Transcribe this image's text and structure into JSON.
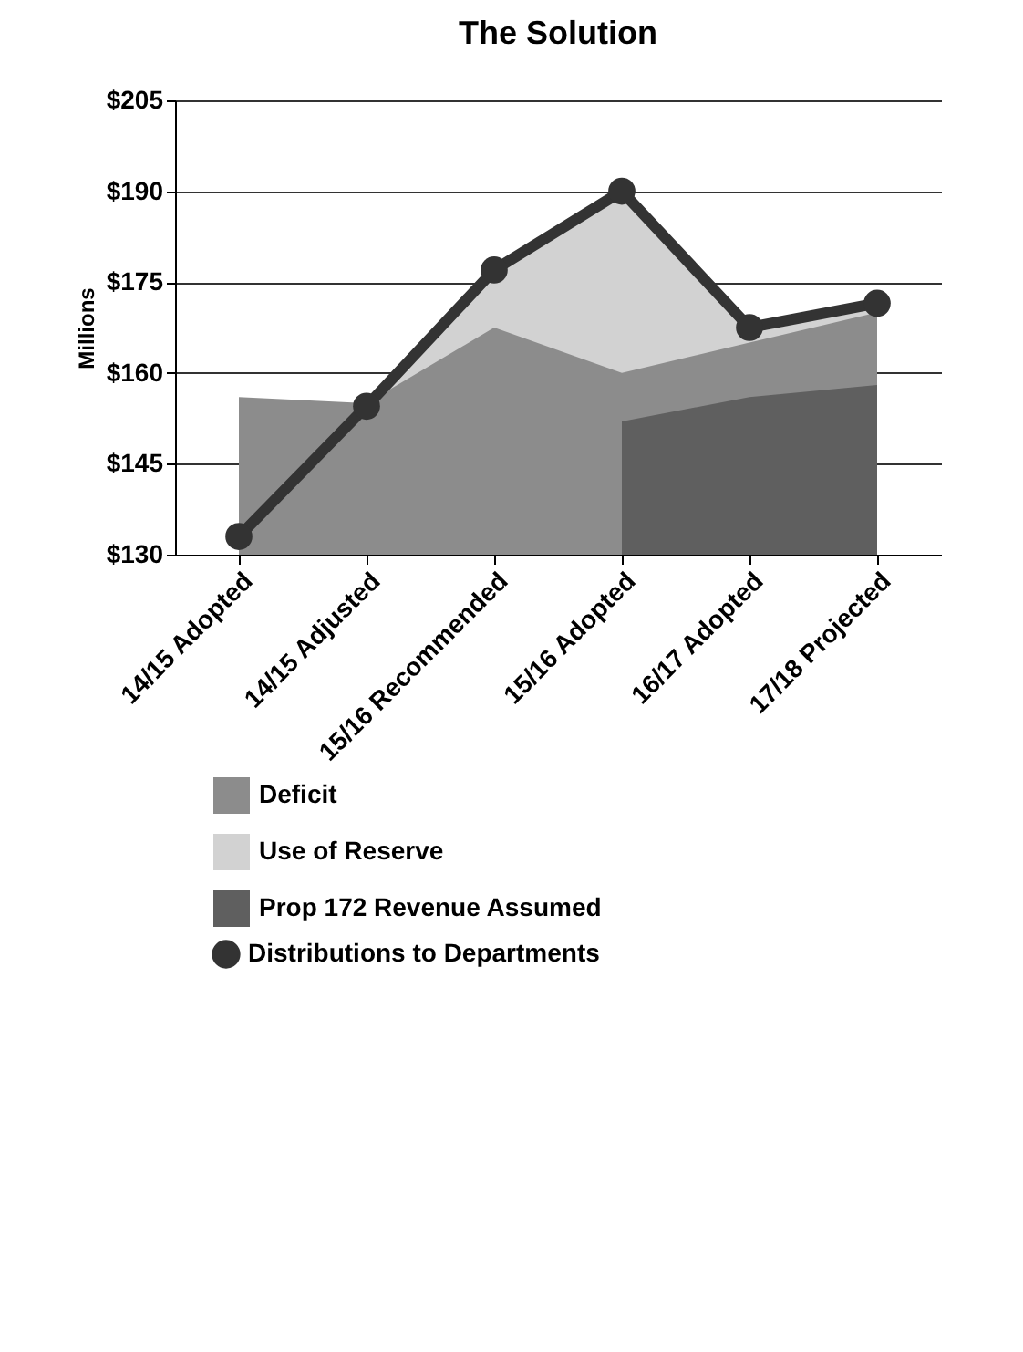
{
  "chart_data": {
    "type": "area",
    "title": "The Solution",
    "ylabel": "Millions",
    "categories": [
      "14/15 Adopted",
      "14/15 Adjusted",
      "15/16 Recommended",
      "15/16 Adopted",
      "16/17 Adopted",
      "17/18 Projected"
    ],
    "series": [
      {
        "name": "Deficit",
        "color": "#8c8c8c",
        "values": [
          156,
          155,
          167.5,
          160,
          165,
          170
        ]
      },
      {
        "name": "Use of Reserve",
        "color": "#d2d2d2",
        "values": [
          null,
          155,
          177,
          190,
          166.5,
          171
        ]
      },
      {
        "name": "Prop 172 Revenue Assumed",
        "color": "#5f5f5f",
        "values": [
          null,
          null,
          null,
          152,
          156,
          158
        ]
      },
      {
        "name": "Distributions to Departments",
        "type": "line",
        "color": "#333333",
        "marker": "circle",
        "values": [
          133,
          154.5,
          177,
          190,
          167.5,
          171.5
        ]
      }
    ],
    "ylim": [
      130,
      205
    ],
    "yticks": [
      {
        "value": 130,
        "label": "$130"
      },
      {
        "value": 145,
        "label": "$145"
      },
      {
        "value": 160,
        "label": "$160"
      },
      {
        "value": 175,
        "label": "$175"
      },
      {
        "value": 190,
        "label": "$190"
      },
      {
        "value": 205,
        "label": "$205"
      }
    ],
    "grid": "y",
    "legend": "bottom"
  }
}
